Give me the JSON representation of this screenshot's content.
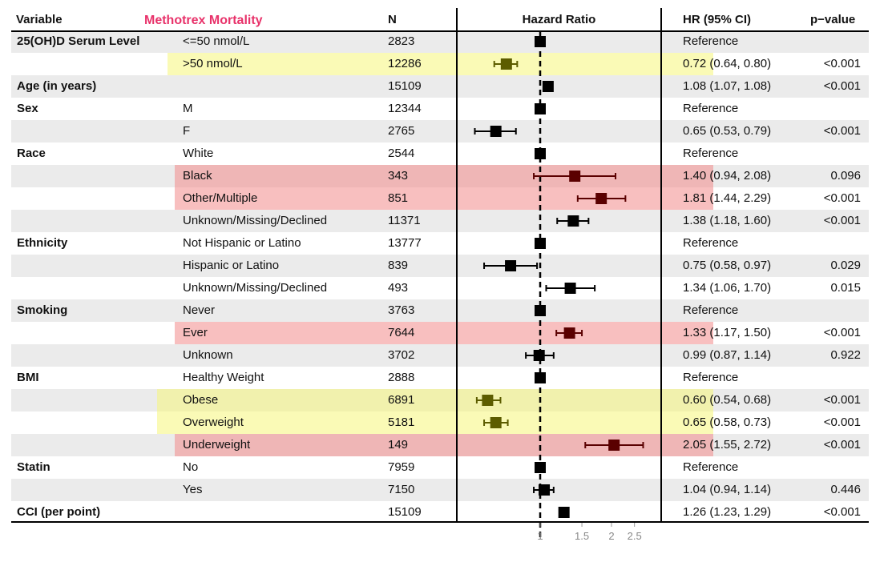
{
  "header": {
    "variable": "Variable",
    "title": "Methotrex Mortality",
    "n": "N",
    "hazard_ratio": "Hazard Ratio",
    "hr_ci": "HR (95% CI)",
    "pvalue": "p−value"
  },
  "colors": {
    "yellow": "#f5f57a",
    "red": "#f28a8a",
    "band": "#ebebeb"
  },
  "rows": [
    {
      "variable": "25(OH)D Serum Level",
      "level": "<=50 nmol/L",
      "n": "2823",
      "hr_lead": "Reference",
      "hr_rest": "",
      "p": "",
      "hr": 1.0,
      "lo": null,
      "hi": null,
      "highlight": ""
    },
    {
      "variable": "",
      "level": ">50 nmol/L",
      "n": "12286",
      "hr_lead": "0.72",
      "hr_rest": " (0.64, 0.80)",
      "p": "<0.001",
      "hr": 0.72,
      "lo": 0.64,
      "hi": 0.8,
      "highlight": "yellow"
    },
    {
      "variable": "Age (in years)",
      "level": "",
      "n": "15109",
      "hr_lead": "1.08",
      "hr_rest": " (1.07, 1.08)",
      "p": "<0.001",
      "hr": 1.08,
      "lo": 1.07,
      "hi": 1.08,
      "highlight": ""
    },
    {
      "variable": "Sex",
      "level": "M",
      "n": "12344",
      "hr_lead": "Reference",
      "hr_rest": "",
      "p": "",
      "hr": 1.0,
      "lo": null,
      "hi": null,
      "highlight": ""
    },
    {
      "variable": "",
      "level": "F",
      "n": "2765",
      "hr_lead": "0.65",
      "hr_rest": " (0.53, 0.79)",
      "p": "<0.001",
      "hr": 0.65,
      "lo": 0.53,
      "hi": 0.79,
      "highlight": ""
    },
    {
      "variable": "Race",
      "level": "White",
      "n": "2544",
      "hr_lead": "Reference",
      "hr_rest": "",
      "p": "",
      "hr": 1.0,
      "lo": null,
      "hi": null,
      "highlight": ""
    },
    {
      "variable": "",
      "level": "Black",
      "n": "343",
      "hr_lead": "1.40",
      "hr_rest": " (0.94, 2.08)",
      "p": "0.096",
      "hr": 1.4,
      "lo": 0.94,
      "hi": 2.08,
      "highlight": "red"
    },
    {
      "variable": "",
      "level": "Other/Multiple",
      "n": "851",
      "hr_lead": "1.81",
      "hr_rest": " (1.44, 2.29)",
      "p": "<0.001",
      "hr": 1.81,
      "lo": 1.44,
      "hi": 2.29,
      "highlight": "red"
    },
    {
      "variable": "",
      "level": "Unknown/Missing/Declined",
      "n": "11371",
      "hr_lead": "1.38",
      "hr_rest": " (1.18, 1.60)",
      "p": "<0.001",
      "hr": 1.38,
      "lo": 1.18,
      "hi": 1.6,
      "highlight": ""
    },
    {
      "variable": "Ethnicity",
      "level": "Not Hispanic or Latino",
      "n": "13777",
      "hr_lead": "Reference",
      "hr_rest": "",
      "p": "",
      "hr": 1.0,
      "lo": null,
      "hi": null,
      "highlight": ""
    },
    {
      "variable": "",
      "level": "Hispanic or Latino",
      "n": "839",
      "hr_lead": "0.75",
      "hr_rest": " (0.58, 0.97)",
      "p": "0.029",
      "hr": 0.75,
      "lo": 0.58,
      "hi": 0.97,
      "highlight": ""
    },
    {
      "variable": "",
      "level": "Unknown/Missing/Declined",
      "n": "493",
      "hr_lead": "1.34",
      "hr_rest": " (1.06, 1.70)",
      "p": "0.015",
      "hr": 1.34,
      "lo": 1.06,
      "hi": 1.7,
      "highlight": ""
    },
    {
      "variable": "Smoking",
      "level": "Never",
      "n": "3763",
      "hr_lead": "Reference",
      "hr_rest": "",
      "p": "",
      "hr": 1.0,
      "lo": null,
      "hi": null,
      "highlight": ""
    },
    {
      "variable": "",
      "level": "Ever",
      "n": "7644",
      "hr_lead": "1.33",
      "hr_rest": " (1.17, 1.50)",
      "p": "<0.001",
      "hr": 1.33,
      "lo": 1.17,
      "hi": 1.5,
      "highlight": "red"
    },
    {
      "variable": "",
      "level": "Unknown",
      "n": "3702",
      "hr_lead": "0.99",
      "hr_rest": " (0.87, 1.14)",
      "p": "0.922",
      "hr": 0.99,
      "lo": 0.87,
      "hi": 1.14,
      "highlight": ""
    },
    {
      "variable": "BMI",
      "level": "Healthy Weight",
      "n": "2888",
      "hr_lead": "Reference",
      "hr_rest": "",
      "p": "",
      "hr": 1.0,
      "lo": null,
      "hi": null,
      "highlight": ""
    },
    {
      "variable": "",
      "level": "Obese",
      "n": "6891",
      "hr_lead": "0.60",
      "hr_rest": " (0.54, 0.68)",
      "p": "<0.001",
      "hr": 0.6,
      "lo": 0.54,
      "hi": 0.68,
      "highlight": "yellow"
    },
    {
      "variable": "",
      "level": "Overweight",
      "n": "5181",
      "hr_lead": "0.65",
      "hr_rest": " (0.58, 0.73)",
      "p": "<0.001",
      "hr": 0.65,
      "lo": 0.58,
      "hi": 0.73,
      "highlight": "yellow"
    },
    {
      "variable": "",
      "level": "Underweight",
      "n": "149",
      "hr_lead": "2.05",
      "hr_rest": " (1.55, 2.72)",
      "p": "<0.001",
      "hr": 2.05,
      "lo": 1.55,
      "hi": 2.72,
      "highlight": "red"
    },
    {
      "variable": "Statin",
      "level": "No",
      "n": "7959",
      "hr_lead": "Reference",
      "hr_rest": "",
      "p": "",
      "hr": 1.0,
      "lo": null,
      "hi": null,
      "highlight": ""
    },
    {
      "variable": "",
      "level": "Yes",
      "n": "7150",
      "hr_lead": "1.04",
      "hr_rest": " (0.94, 1.14)",
      "p": "0.446",
      "hr": 1.04,
      "lo": 0.94,
      "hi": 1.14,
      "highlight": ""
    },
    {
      "variable": "CCI (per point)",
      "level": "",
      "n": "15109",
      "hr_lead": "1.26",
      "hr_rest": " (1.23, 1.29)",
      "p": "<0.001",
      "hr": 1.26,
      "lo": 1.23,
      "hi": 1.29,
      "highlight": ""
    }
  ],
  "chart_data": {
    "type": "forest",
    "title": "Methotrex Mortality",
    "xlabel": "Hazard Ratio",
    "scale": "log",
    "reference_line": 1,
    "ticks": [
      1,
      1.5,
      2,
      2.5
    ],
    "tick_labels": [
      "1",
      "1.5",
      "2",
      "2.5"
    ]
  }
}
